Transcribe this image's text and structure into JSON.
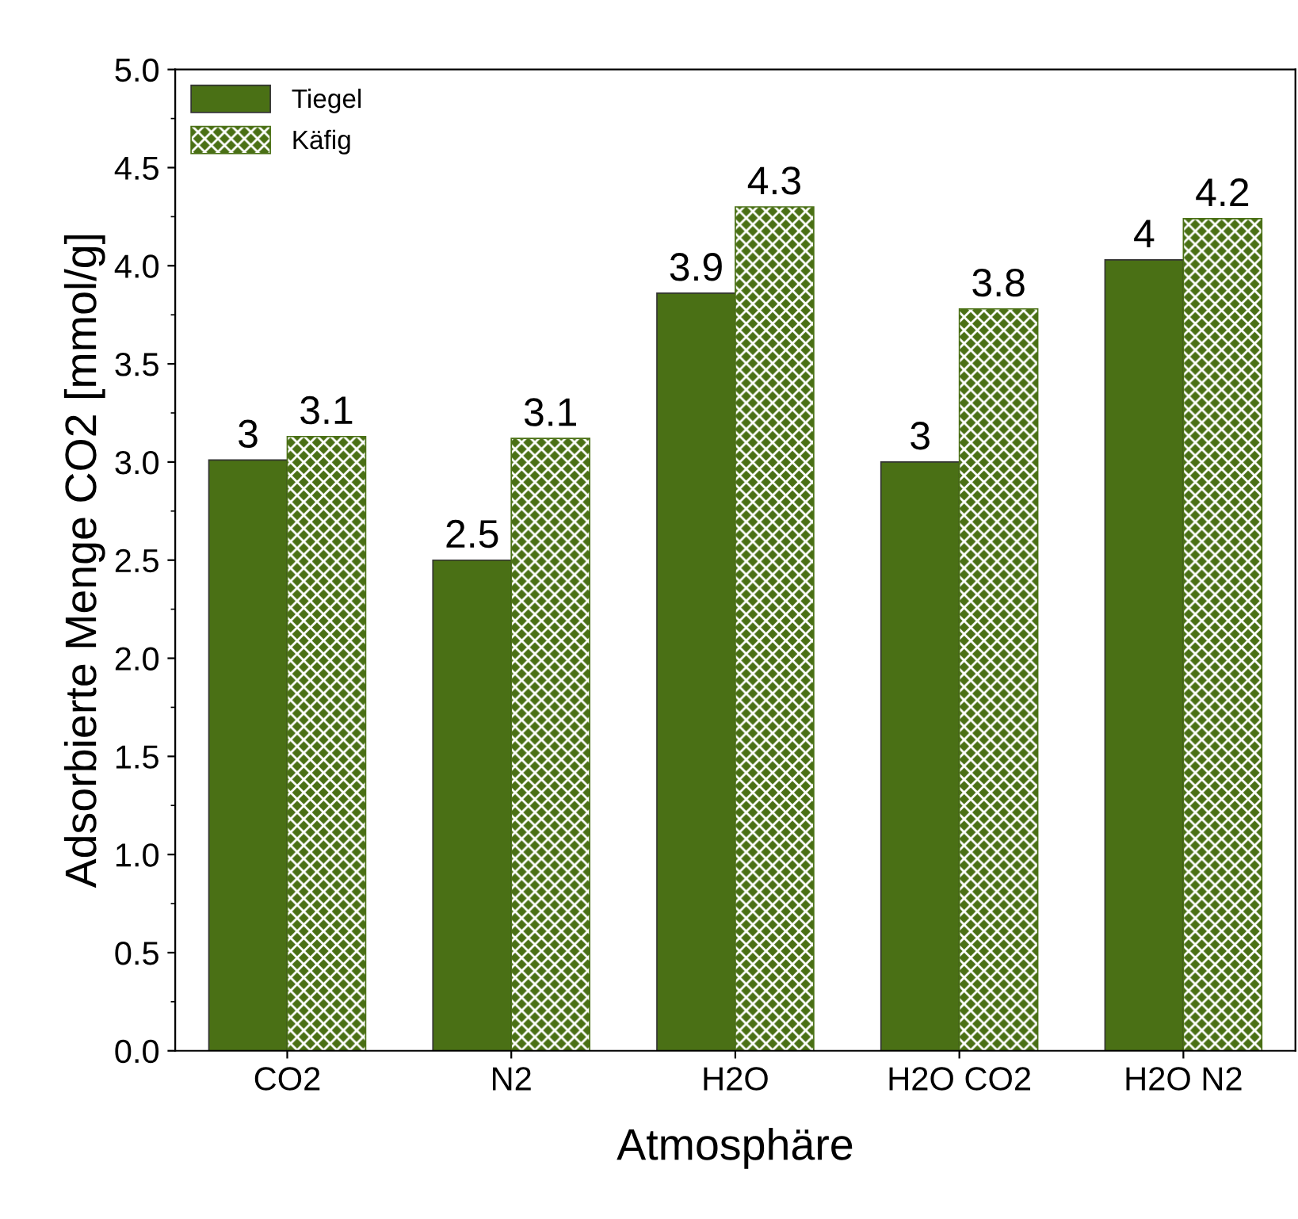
{
  "chart_data": {
    "type": "bar",
    "xlabel": "Atmosphäre",
    "ylabel": "Adsorbierte Menge CO2 [mmol/g]",
    "categories": [
      "CO2",
      "N2",
      "H2O",
      "H2O CO2",
      "H2O N2"
    ],
    "series": [
      {
        "name": "Tiegel",
        "color": "#4a7015",
        "values": [
          3.01,
          2.5,
          3.86,
          3.0,
          4.03
        ],
        "value_labels": [
          "3",
          "2.5",
          "3.9",
          "3",
          "4"
        ]
      },
      {
        "name": "Käfig",
        "color": "#4a7015",
        "values": [
          3.13,
          3.12,
          4.3,
          3.78,
          4.24
        ],
        "value_labels": [
          "3.1",
          "3.1",
          "4.3",
          "3.8",
          "4.2"
        ]
      }
    ],
    "ylim": [
      0,
      5
    ],
    "yticks": [
      {
        "value": 0,
        "label": "0.0"
      },
      0.5,
      {
        "value": 1,
        "label": "1.0"
      },
      1.5,
      {
        "value": 2,
        "label": "2.0"
      },
      2.5,
      {
        "value": 3,
        "label": "3.0"
      },
      3.5,
      {
        "value": 4,
        "label": "4.0"
      },
      4.5,
      {
        "value": 5,
        "label": "5.0"
      }
    ],
    "grid": false,
    "legend": "top left"
  }
}
